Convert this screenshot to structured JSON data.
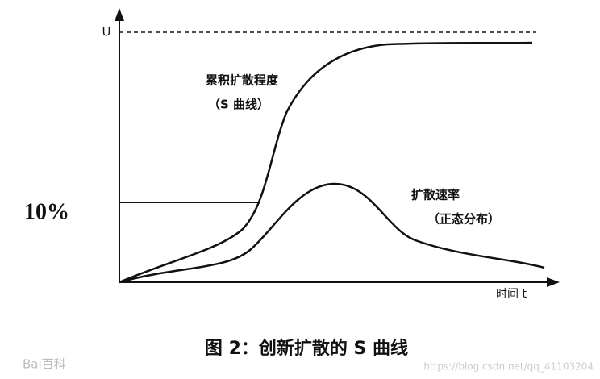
{
  "axis": {
    "upper_label": "U",
    "x_label": "时间 t",
    "level_label": "10%"
  },
  "curves": {
    "s_curve": {
      "label": "累积扩散程度",
      "sublabel": "（S 曲线）"
    },
    "bell_curve": {
      "label": "扩散速率",
      "sublabel": "（正态分布）"
    }
  },
  "caption": "图 2：创新扩散的 S 曲线",
  "watermark": {
    "logo": "Bai百科",
    "url": "https://blog.csdn.net/qq_41103204"
  }
}
